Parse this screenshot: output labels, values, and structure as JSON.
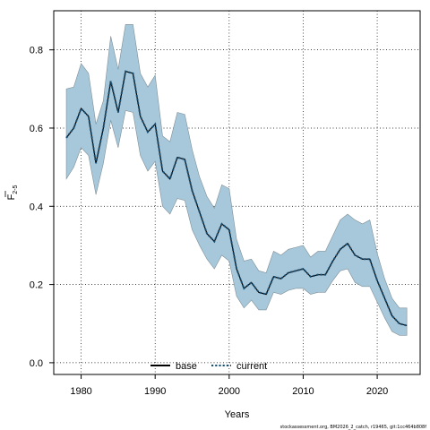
{
  "chart_data": {
    "type": "line",
    "xlabel": "Years",
    "ylabel_main": "F",
    "ylabel_sub": "2-5",
    "xlim": [
      1976.3,
      2025.8
    ],
    "ylim": [
      -0.03,
      0.9
    ],
    "x_ticks": [
      1980,
      1990,
      2000,
      2010,
      2020
    ],
    "x_tick_labels": [
      "1980",
      "1990",
      "2000",
      "2010",
      "2020"
    ],
    "y_ticks": [
      0.0,
      0.2,
      0.4,
      0.6,
      0.8
    ],
    "y_tick_labels": [
      "0.0",
      "0.2",
      "0.4",
      "0.6",
      "0.8"
    ],
    "grid": true,
    "legend_position": "bottom-center",
    "x": [
      1978,
      1979,
      1980,
      1981,
      1982,
      1983,
      1984,
      1985,
      1986,
      1987,
      1988,
      1989,
      1990,
      1991,
      1992,
      1993,
      1994,
      1995,
      1996,
      1997,
      1998,
      1999,
      2000,
      2001,
      2002,
      2003,
      2004,
      2005,
      2006,
      2007,
      2008,
      2009,
      2010,
      2011,
      2012,
      2013,
      2014,
      2015,
      2016,
      2017,
      2018,
      2019,
      2020,
      2021,
      2022,
      2023,
      2024
    ],
    "series": [
      {
        "name": "base",
        "style": "solid",
        "color": "#000000",
        "values": [
          0.575,
          0.6,
          0.65,
          0.63,
          0.51,
          0.6,
          0.72,
          0.64,
          0.745,
          0.74,
          0.63,
          0.59,
          0.61,
          0.49,
          0.47,
          0.525,
          0.52,
          0.44,
          0.385,
          0.33,
          0.31,
          0.355,
          0.34,
          0.24,
          0.19,
          0.205,
          0.18,
          0.175,
          0.22,
          0.215,
          0.23,
          0.235,
          0.24,
          0.22,
          0.225,
          0.225,
          0.26,
          0.29,
          0.305,
          0.275,
          0.265,
          0.265,
          0.21,
          0.165,
          0.12,
          0.1,
          0.095
        ]
      },
      {
        "name": "current",
        "style": "dotted",
        "color": "#000000",
        "values": [
          0.575,
          0.6,
          0.65,
          0.63,
          0.51,
          0.6,
          0.72,
          0.64,
          0.745,
          0.74,
          0.63,
          0.59,
          0.61,
          0.49,
          0.47,
          0.525,
          0.52,
          0.44,
          0.385,
          0.33,
          0.31,
          0.355,
          0.34,
          0.24,
          0.19,
          0.205,
          0.18,
          0.175,
          0.22,
          0.215,
          0.23,
          0.235,
          0.24,
          0.22,
          0.225,
          0.225,
          0.26,
          0.29,
          0.305,
          0.275,
          0.265,
          0.265,
          0.21,
          0.165,
          0.12,
          0.1,
          0.095
        ]
      }
    ],
    "band": {
      "color": "#a6c8da",
      "upper": [
        0.7,
        0.705,
        0.765,
        0.74,
        0.61,
        0.67,
        0.835,
        0.75,
        0.865,
        0.865,
        0.74,
        0.705,
        0.735,
        0.58,
        0.565,
        0.64,
        0.635,
        0.545,
        0.475,
        0.425,
        0.395,
        0.455,
        0.445,
        0.315,
        0.26,
        0.265,
        0.235,
        0.23,
        0.285,
        0.275,
        0.29,
        0.295,
        0.3,
        0.27,
        0.285,
        0.285,
        0.325,
        0.365,
        0.38,
        0.365,
        0.355,
        0.365,
        0.28,
        0.215,
        0.165,
        0.14,
        0.14
      ],
      "lower": [
        0.47,
        0.5,
        0.55,
        0.53,
        0.43,
        0.51,
        0.62,
        0.55,
        0.645,
        0.64,
        0.53,
        0.49,
        0.515,
        0.4,
        0.38,
        0.42,
        0.415,
        0.34,
        0.3,
        0.265,
        0.24,
        0.275,
        0.26,
        0.17,
        0.14,
        0.16,
        0.135,
        0.135,
        0.18,
        0.175,
        0.185,
        0.19,
        0.19,
        0.175,
        0.18,
        0.18,
        0.21,
        0.235,
        0.24,
        0.205,
        0.195,
        0.195,
        0.155,
        0.115,
        0.08,
        0.07,
        0.07
      ]
    }
  },
  "legend": {
    "base_label": "base",
    "current_label": "current"
  },
  "footnote": "stockassessment.org, BM2026_2_catch, r19465, git:1cc464b808f"
}
